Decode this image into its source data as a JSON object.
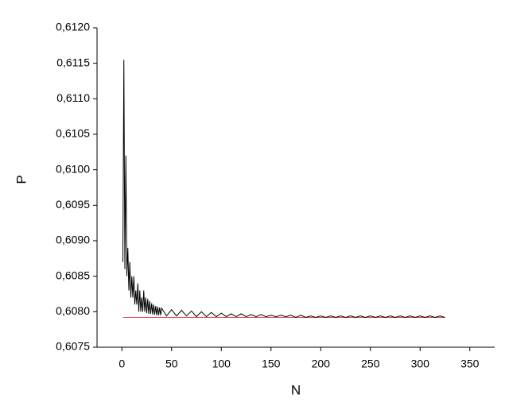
{
  "chart_data": {
    "type": "line",
    "x_label": "N",
    "y_label": "P",
    "xlim": [
      -25,
      375
    ],
    "ylim": [
      0.6075,
      0.612
    ],
    "xticks": [
      0,
      50,
      100,
      150,
      200,
      250,
      300,
      350
    ],
    "yticks": [
      {
        "value": 0.6075,
        "label": "0,6075"
      },
      {
        "value": 0.608,
        "label": "0,6080"
      },
      {
        "value": 0.6085,
        "label": "0,6085"
      },
      {
        "value": 0.609,
        "label": "0,6090"
      },
      {
        "value": 0.6095,
        "label": "0,6095"
      },
      {
        "value": 0.61,
        "label": "0,6100"
      },
      {
        "value": 0.6105,
        "label": "0,6105"
      },
      {
        "value": 0.611,
        "label": "0,6110"
      },
      {
        "value": 0.6115,
        "label": "0,6115"
      },
      {
        "value": 0.612,
        "label": "0,6120"
      }
    ],
    "series": [
      {
        "color": "#000000",
        "x": [
          1,
          2,
          3,
          4,
          5,
          6,
          7,
          8,
          9,
          10,
          11,
          12,
          13,
          14,
          15,
          16,
          17,
          18,
          19,
          20,
          21,
          22,
          23,
          24,
          25,
          26,
          27,
          28,
          29,
          30,
          31,
          32,
          33,
          34,
          35,
          36,
          37,
          38,
          39,
          40,
          45,
          50,
          55,
          60,
          65,
          70,
          75,
          80,
          85,
          90,
          95,
          100,
          105,
          110,
          115,
          120,
          125,
          130,
          135,
          140,
          145,
          150,
          155,
          160,
          165,
          170,
          175,
          180,
          185,
          190,
          195,
          200,
          205,
          210,
          215,
          220,
          225,
          230,
          235,
          240,
          245,
          250,
          255,
          260,
          265,
          270,
          275,
          280,
          285,
          290,
          295,
          300,
          305,
          310,
          315,
          320,
          325
        ],
        "values": [
          0.6087,
          0.61155,
          0.6086,
          0.6102,
          0.6085,
          0.6089,
          0.6083,
          0.6087,
          0.6082,
          0.6085,
          0.6082,
          0.6085,
          0.6081,
          0.6083,
          0.6081,
          0.6084,
          0.608,
          0.6083,
          0.608,
          0.6082,
          0.608,
          0.6083,
          0.608,
          0.6082,
          0.60798,
          0.60818,
          0.60797,
          0.60815,
          0.60797,
          0.60812,
          0.60796,
          0.6081,
          0.60796,
          0.60808,
          0.60795,
          0.60807,
          0.60795,
          0.60806,
          0.60795,
          0.60805,
          0.60794,
          0.60803,
          0.60794,
          0.60802,
          0.60794,
          0.60801,
          0.60793,
          0.608,
          0.60793,
          0.60799,
          0.60793,
          0.60798,
          0.60793,
          0.60797,
          0.60793,
          0.60797,
          0.60793,
          0.60796,
          0.60793,
          0.60796,
          0.60793,
          0.60795,
          0.60793,
          0.60795,
          0.60793,
          0.60795,
          0.60792,
          0.60795,
          0.60792,
          0.60794,
          0.60792,
          0.60794,
          0.60792,
          0.60794,
          0.60792,
          0.60794,
          0.60792,
          0.60794,
          0.60792,
          0.60794,
          0.60792,
          0.60794,
          0.60792,
          0.60794,
          0.60792,
          0.60794,
          0.60792,
          0.60794,
          0.60792,
          0.60794,
          0.60792,
          0.60794,
          0.60792,
          0.60794,
          0.60792,
          0.60794,
          0.60792
        ]
      },
      {
        "color": "#e8413c",
        "x": [
          1,
          325
        ],
        "values": [
          0.60792,
          0.60792
        ]
      }
    ]
  }
}
